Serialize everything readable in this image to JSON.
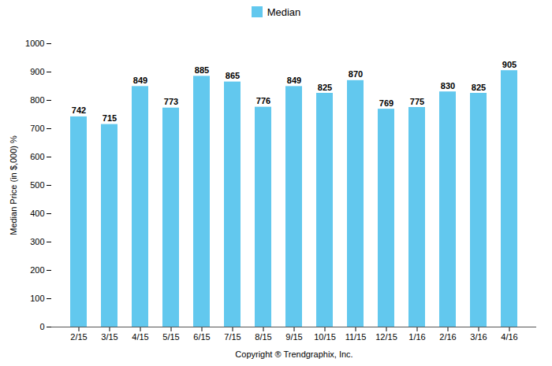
{
  "chart_data": {
    "type": "bar",
    "categories": [
      "2/15",
      "3/15",
      "4/15",
      "5/15",
      "6/15",
      "7/15",
      "8/15",
      "9/15",
      "10/15",
      "11/15",
      "12/15",
      "1/16",
      "2/16",
      "3/16",
      "4/16"
    ],
    "series": [
      {
        "name": "Median",
        "color": "#62C8EE",
        "values": [
          742,
          715,
          849,
          773,
          885,
          865,
          776,
          849,
          825,
          870,
          769,
          775,
          830,
          825,
          905
        ]
      }
    ],
    "ylabel": "Median Price (in $,000) %",
    "xlabel": "Copyright ® Trendgraphix, Inc.",
    "ylim": [
      0,
      1000
    ],
    "yticks": [
      0,
      100,
      200,
      300,
      400,
      500,
      600,
      700,
      800,
      900,
      1000
    ],
    "grid": false,
    "legend": "top",
    "data_labels": true
  }
}
